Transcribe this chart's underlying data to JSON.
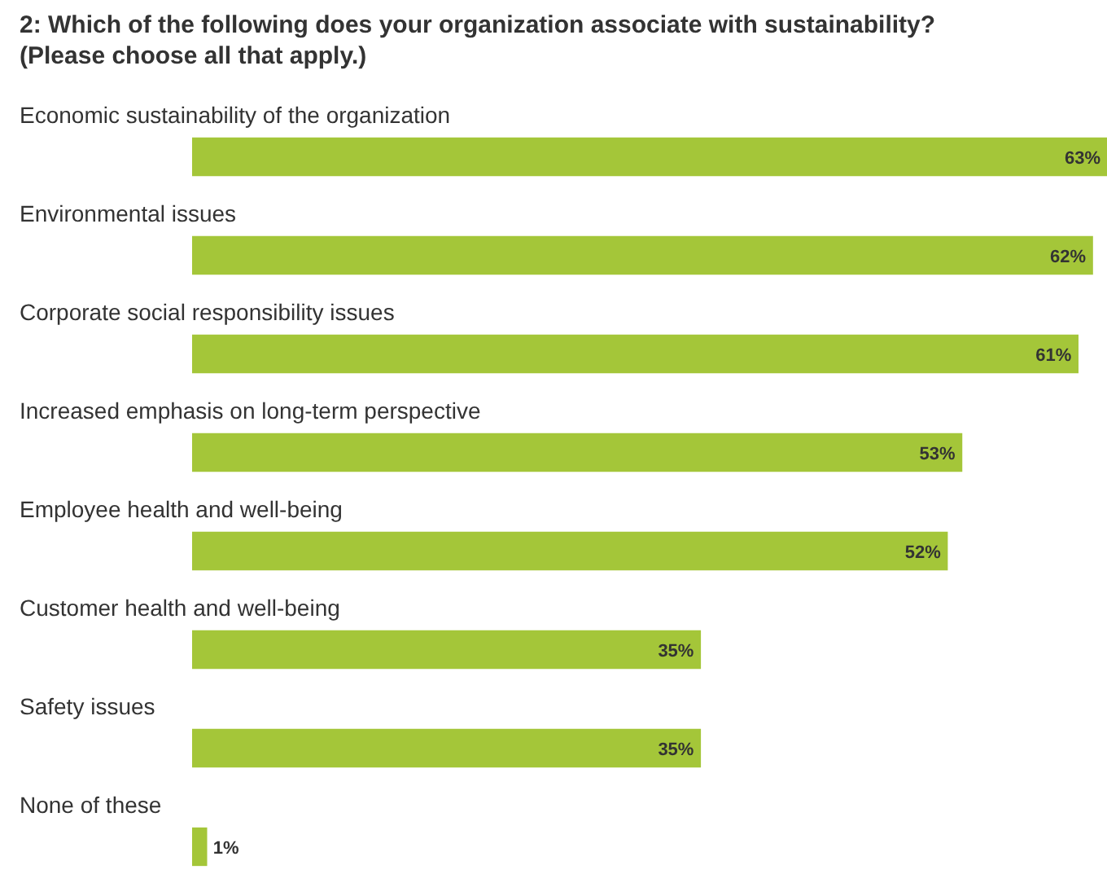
{
  "chart_data": {
    "type": "bar",
    "orientation": "horizontal",
    "title": "2: Which of the following does your organization associate with sustainability? (Please choose all that apply.)",
    "categories": [
      "Economic sustainability of the organization",
      "Environmental issues",
      "Corporate social responsibility issues",
      "Increased emphasis on long-term perspective",
      "Employee health and well-being",
      "Customer health and well-being",
      "Safety issues",
      "None of these"
    ],
    "values": [
      63,
      62,
      61,
      53,
      52,
      35,
      35,
      1
    ],
    "value_labels": [
      "63%",
      "62%",
      "61%",
      "53%",
      "52%",
      "35%",
      "35%",
      "1%"
    ],
    "color": "#a4c639",
    "legend": false,
    "tick_labels": false
  }
}
